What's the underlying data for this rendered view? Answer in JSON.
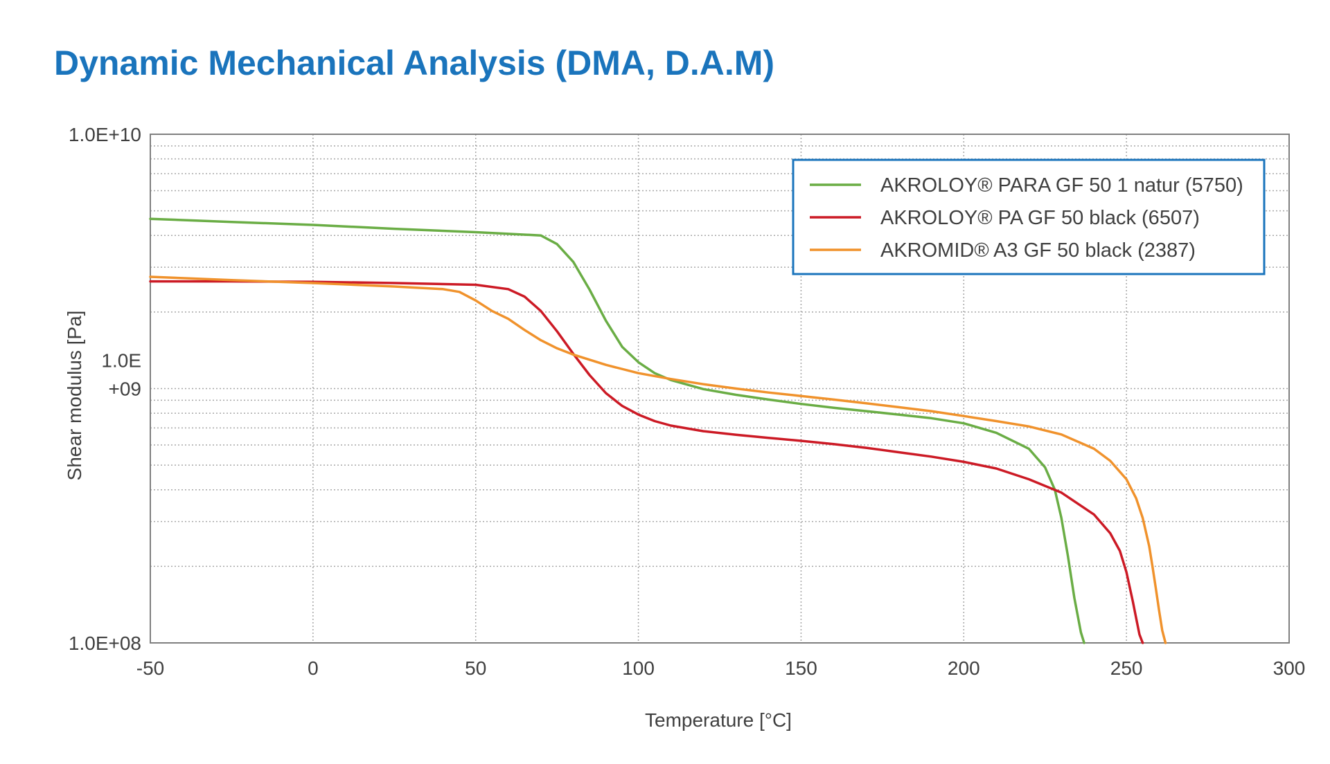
{
  "title": "Dynamic Mechanical Analysis (DMA, D.A.M)",
  "colors": {
    "title": "#1a74bc",
    "legend_border": "#1a74bc",
    "plot_border": "#7f7f7f",
    "grid": "#a6a6a6"
  },
  "chart_data": {
    "type": "line",
    "xlabel": "Temperature [°C]",
    "ylabel": "Shear modulus [Pa]",
    "xlim": [
      -50,
      300
    ],
    "ylim": [
      100000000,
      10000000000
    ],
    "yscale": "log",
    "grid": true,
    "legend_position": "top-right",
    "x_ticks": [
      {
        "value": -50,
        "label": "-50"
      },
      {
        "value": 0,
        "label": "0"
      },
      {
        "value": 50,
        "label": "50"
      },
      {
        "value": 100,
        "label": "100"
      },
      {
        "value": 150,
        "label": "150"
      },
      {
        "value": 200,
        "label": "200"
      },
      {
        "value": 250,
        "label": "250"
      },
      {
        "value": 300,
        "label": "300"
      }
    ],
    "y_ticks": [
      {
        "value": 10000000000,
        "label": "1.0E+10"
      },
      {
        "value": 1000000000,
        "label_lines": [
          "1.0E",
          "+09"
        ]
      },
      {
        "value": 100000000,
        "label": "1.0E+08"
      }
    ],
    "series": [
      {
        "name": "AKROLOY® PARA GF 50 1 natur (5750)",
        "color": "#6aad45",
        "x": [
          -50,
          -25,
          0,
          25,
          50,
          70,
          75,
          80,
          85,
          90,
          95,
          100,
          105,
          110,
          120,
          130,
          140,
          150,
          160,
          170,
          180,
          190,
          200,
          210,
          220,
          225,
          228,
          230,
          232,
          234,
          236,
          237
        ],
        "y": [
          4650000000,
          4520000000,
          4400000000,
          4250000000,
          4120000000,
          4000000000,
          3700000000,
          3150000000,
          2450000000,
          1850000000,
          1460000000,
          1270000000,
          1150000000,
          1080000000,
          995000000,
          945000000,
          905000000,
          870000000,
          840000000,
          815000000,
          790000000,
          765000000,
          730000000,
          670000000,
          580000000,
          490000000,
          400000000,
          310000000,
          220000000,
          150000000,
          110000000,
          100000000
        ]
      },
      {
        "name": "AKROLOY® PA GF 50 black (6507)",
        "color": "#cc1a25",
        "x": [
          -50,
          -25,
          0,
          25,
          50,
          60,
          65,
          70,
          75,
          80,
          85,
          90,
          95,
          100,
          105,
          110,
          120,
          130,
          140,
          150,
          160,
          170,
          180,
          190,
          200,
          210,
          220,
          230,
          240,
          245,
          248,
          250,
          252,
          253,
          254,
          255
        ],
        "y": [
          2640000000,
          2640000000,
          2630000000,
          2600000000,
          2560000000,
          2460000000,
          2300000000,
          2020000000,
          1680000000,
          1370000000,
          1130000000,
          960000000,
          855000000,
          790000000,
          745000000,
          715000000,
          680000000,
          658000000,
          640000000,
          623000000,
          605000000,
          585000000,
          562000000,
          540000000,
          515000000,
          485000000,
          440000000,
          390000000,
          320000000,
          270000000,
          230000000,
          190000000,
          145000000,
          125000000,
          108000000,
          100000000
        ]
      },
      {
        "name": "AKROMID® A3 GF 50 black (2387)",
        "color": "#f0922c",
        "x": [
          -50,
          -25,
          0,
          25,
          40,
          45,
          50,
          55,
          60,
          65,
          70,
          75,
          80,
          90,
          100,
          110,
          120,
          130,
          140,
          150,
          160,
          170,
          180,
          190,
          200,
          210,
          220,
          230,
          240,
          245,
          250,
          253,
          255,
          257,
          258,
          259,
          260,
          261,
          262
        ],
        "y": [
          2750000000,
          2670000000,
          2600000000,
          2520000000,
          2460000000,
          2400000000,
          2220000000,
          2020000000,
          1880000000,
          1700000000,
          1550000000,
          1440000000,
          1360000000,
          1240000000,
          1150000000,
          1090000000,
          1040000000,
          1000000000,
          965000000,
          935000000,
          905000000,
          875000000,
          845000000,
          815000000,
          780000000,
          745000000,
          710000000,
          660000000,
          580000000,
          520000000,
          440000000,
          370000000,
          310000000,
          240000000,
          200000000,
          165000000,
          135000000,
          112000000,
          100000000
        ]
      }
    ]
  }
}
